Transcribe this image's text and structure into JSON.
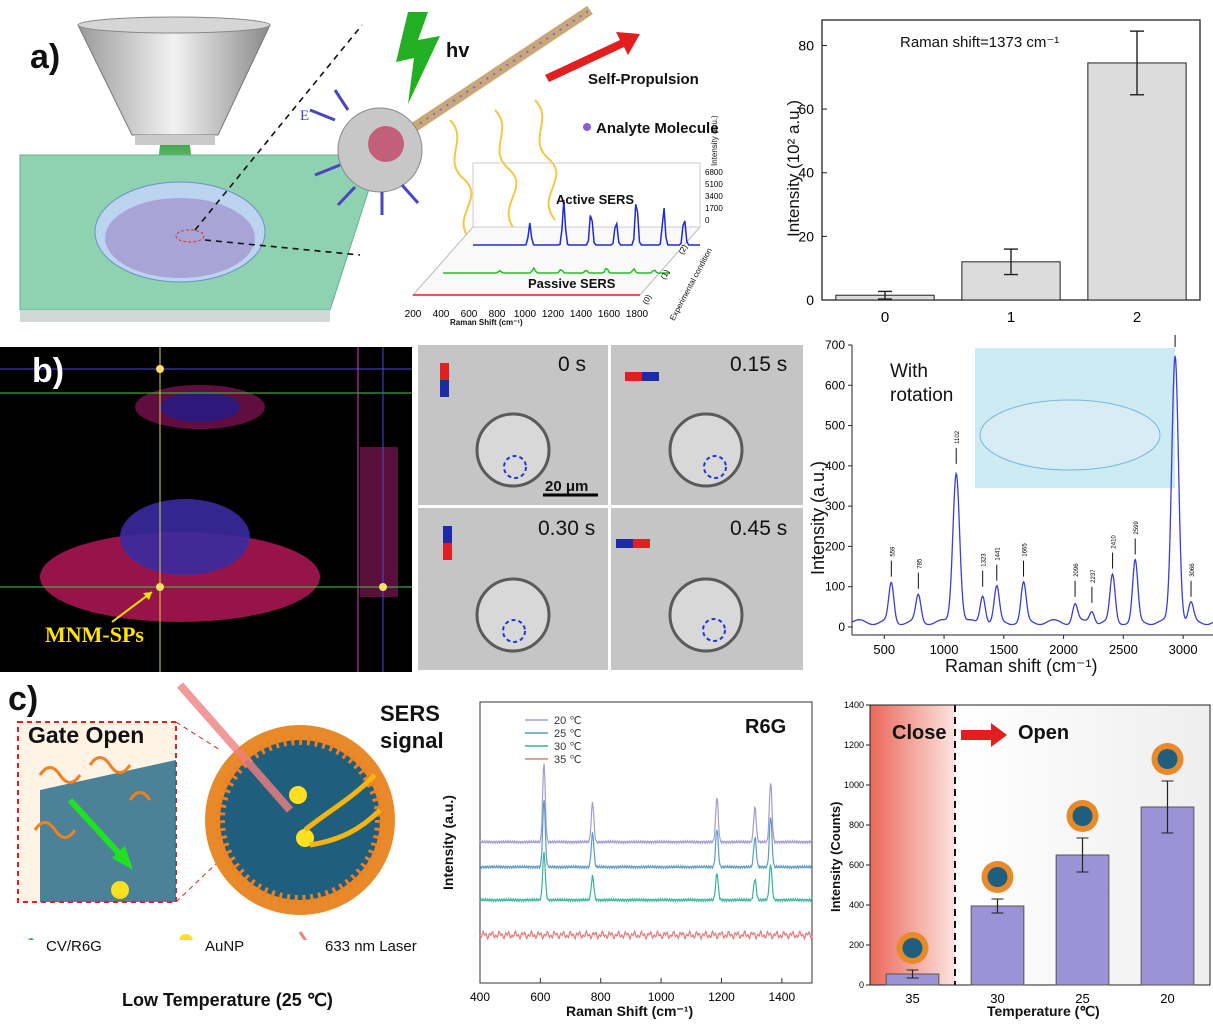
{
  "panel_labels": {
    "a": "a)",
    "b": "b)",
    "c": "c)"
  },
  "panel_a": {
    "hv": "hv",
    "self_propulsion": "Self-Propulsion",
    "analyte": "Analyte Molecule",
    "e_label": "E",
    "active_sers": "Active SERS",
    "passive_sers": "Passive SERS",
    "inset_xlabel": "Raman Shift (cm⁻¹)",
    "inset_ylabel": "Intensity (a.u.)",
    "inset_zlabel": "Experimental condition",
    "inset_xticks": [
      "200",
      "400",
      "600",
      "800",
      "1000",
      "1200",
      "1400",
      "1600",
      "1800"
    ],
    "inset_yticks": [
      "6800",
      "5100",
      "3400",
      "1700",
      "0"
    ],
    "inset_zticks": [
      "(0)",
      "(1)",
      "(2)"
    ]
  },
  "panel_b": {
    "mnm_label": "MNM-SPs",
    "frames": [
      {
        "time": "0 s"
      },
      {
        "time": "0.15 s"
      },
      {
        "time": "0.30 s"
      },
      {
        "time": "0.45 s"
      }
    ],
    "scalebar": "20 μm",
    "with_rotation": "With\nrotation"
  },
  "panel_c": {
    "gate_open": "Gate Open",
    "sers_signal": "SERS\nsignal",
    "legend_cv": "CV/R6G",
    "legend_au": "AuNP",
    "legend_laser": "633 nm Laser",
    "caption": "Low Temperature (25 ℃)",
    "close": "Close",
    "open": "Open"
  },
  "chart_data": [
    {
      "id": "a-bar",
      "type": "bar",
      "title": "Raman shift=1373 cm⁻¹",
      "xlabel": "",
      "ylabel": "Intensity (10² a.u.)",
      "categories": [
        "0",
        "1",
        "2"
      ],
      "values": [
        1.5,
        12,
        74.5
      ],
      "errors": [
        1.2,
        4,
        10
      ],
      "ylim": [
        0,
        88
      ],
      "yticks": [
        0,
        20,
        40,
        60,
        80
      ],
      "colors": {
        "bar": "#d9d9d9"
      }
    },
    {
      "id": "b-spectrum",
      "type": "line",
      "xlabel": "Raman shift (cm⁻¹)",
      "ylabel": "Intensity (a.u.)",
      "xlim": [
        230,
        3250
      ],
      "ylim": [
        -20,
        700
      ],
      "xticks": [
        500,
        1000,
        1500,
        2000,
        2500,
        3000
      ],
      "yticks": [
        0,
        100,
        200,
        300,
        400,
        500,
        600,
        700
      ],
      "peaks": [
        {
          "x": 559,
          "y": 110,
          "label": "559"
        },
        {
          "x": 785,
          "y": 80,
          "label": "785"
        },
        {
          "x": 1102,
          "y": 390,
          "label": "1102"
        },
        {
          "x": 1323,
          "y": 85,
          "label": "1323"
        },
        {
          "x": 1441,
          "y": 100,
          "label": "1441"
        },
        {
          "x": 1665,
          "y": 110,
          "label": "1665"
        },
        {
          "x": 2096,
          "y": 60,
          "label": "2096"
        },
        {
          "x": 2237,
          "y": 45,
          "label": "2237"
        },
        {
          "x": 2410,
          "y": 130,
          "label": "2410"
        },
        {
          "x": 2599,
          "y": 165,
          "label": "2599"
        },
        {
          "x": 2933,
          "y": 680,
          "label": "2933"
        },
        {
          "x": 3066,
          "y": 60,
          "label": "3066"
        }
      ],
      "colors": {
        "line": "#3a3fd6"
      }
    },
    {
      "id": "c-spectra",
      "type": "line",
      "title": "R6G",
      "xlabel": "Raman Shift (cm⁻¹)",
      "ylabel": "Intensity (a.u.)",
      "xlim": [
        400,
        1500
      ],
      "xticks": [
        400,
        600,
        800,
        1000,
        1200,
        1400
      ],
      "series": [
        {
          "name": "20 ℃",
          "color": "#a59bd0"
        },
        {
          "name": "25 ℃",
          "color": "#5b9bc9"
        },
        {
          "name": "30 ℃",
          "color": "#36b49e"
        },
        {
          "name": "35 ℃",
          "color": "#e87a7a"
        }
      ],
      "peak_positions": [
        612,
        773,
        1185,
        1311,
        1363,
        1510
      ]
    },
    {
      "id": "c-bar",
      "type": "bar",
      "xlabel": "Temperature (℃)",
      "ylabel": "Intensity (Counts)",
      "categories": [
        "35",
        "30",
        "25",
        "20"
      ],
      "values": [
        55,
        395,
        650,
        890
      ],
      "errors": [
        20,
        35,
        85,
        130
      ],
      "ylim": [
        0,
        1400
      ],
      "yticks": [
        0,
        200,
        400,
        600,
        800,
        1000,
        1200,
        1400
      ],
      "colors": {
        "bar": "#9b93d6",
        "close_bg": "#e9685a"
      }
    }
  ]
}
